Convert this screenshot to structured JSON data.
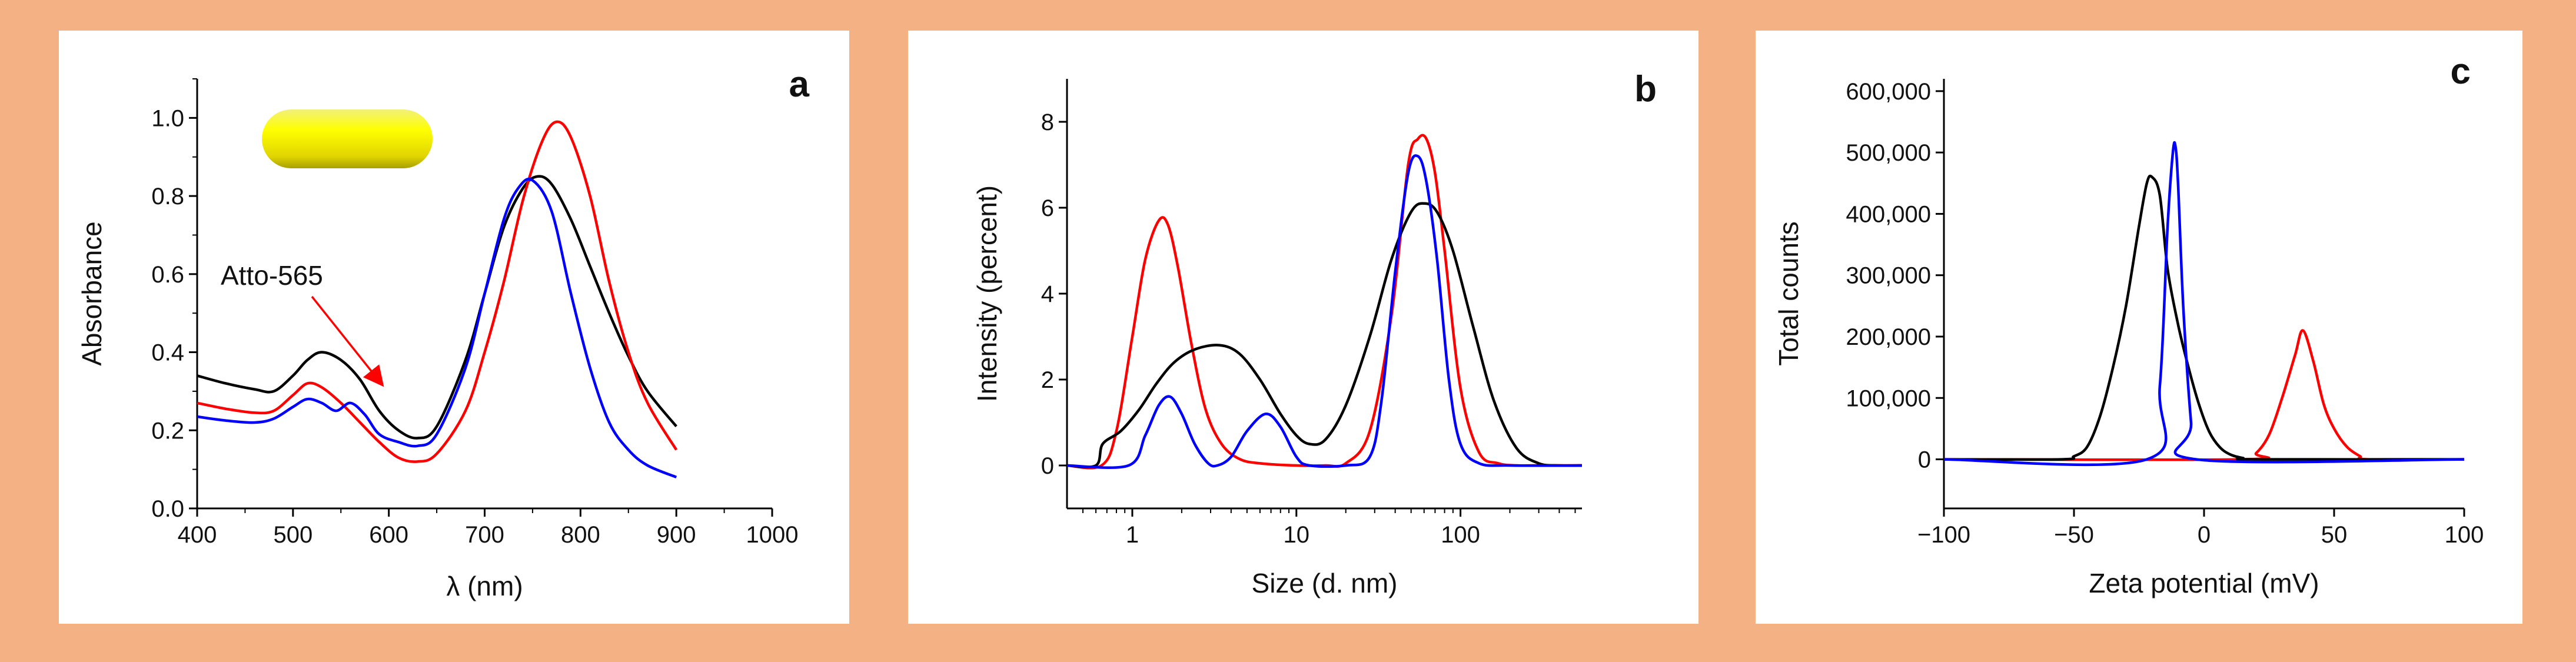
{
  "chart_data": [
    {
      "panel": "a",
      "type": "line",
      "panel_label": "a",
      "xlabel": "λ (nm)",
      "ylabel": "Absorbance",
      "xlim": [
        400,
        1000
      ],
      "ylim": [
        0,
        1.1
      ],
      "xticks": [
        "400",
        "500",
        "600",
        "700",
        "800",
        "900",
        "1000"
      ],
      "yticks": [
        "0.0",
        "0.2",
        "0.4",
        "0.6",
        "0.8",
        "1.0"
      ],
      "annotation": "Atto-565",
      "series": [
        {
          "name": "black",
          "color": "#000000",
          "x": [
            400,
            430,
            460,
            480,
            500,
            515,
            530,
            550,
            570,
            590,
            610,
            630,
            650,
            680,
            700,
            720,
            740,
            755,
            770,
            790,
            810,
            830,
            850,
            870,
            900
          ],
          "y": [
            0.34,
            0.32,
            0.305,
            0.3,
            0.34,
            0.38,
            0.4,
            0.38,
            0.33,
            0.25,
            0.2,
            0.18,
            0.21,
            0.38,
            0.55,
            0.72,
            0.82,
            0.85,
            0.83,
            0.74,
            0.62,
            0.5,
            0.39,
            0.3,
            0.21
          ]
        },
        {
          "name": "red",
          "color": "#FF0000",
          "x": [
            400,
            430,
            460,
            480,
            500,
            515,
            530,
            550,
            570,
            590,
            610,
            630,
            650,
            680,
            700,
            720,
            740,
            760,
            775,
            790,
            810,
            830,
            850,
            870,
            900
          ],
          "y": [
            0.27,
            0.255,
            0.245,
            0.25,
            0.29,
            0.32,
            0.31,
            0.27,
            0.22,
            0.17,
            0.13,
            0.12,
            0.14,
            0.25,
            0.4,
            0.58,
            0.79,
            0.94,
            0.99,
            0.95,
            0.8,
            0.58,
            0.4,
            0.27,
            0.15
          ]
        },
        {
          "name": "blue",
          "color": "#0000FF",
          "x": [
            400,
            430,
            460,
            480,
            500,
            515,
            530,
            545,
            560,
            575,
            590,
            610,
            630,
            650,
            680,
            700,
            720,
            735,
            750,
            770,
            790,
            810,
            830,
            850,
            870,
            900
          ],
          "y": [
            0.235,
            0.225,
            0.22,
            0.23,
            0.26,
            0.28,
            0.27,
            0.25,
            0.27,
            0.24,
            0.19,
            0.17,
            0.16,
            0.19,
            0.36,
            0.55,
            0.74,
            0.82,
            0.84,
            0.76,
            0.55,
            0.36,
            0.22,
            0.15,
            0.11,
            0.08
          ]
        }
      ]
    },
    {
      "panel": "b",
      "type": "line",
      "panel_label": "b",
      "xlabel": "Size (d. nm)",
      "ylabel": "Intensity (percent)",
      "xscale": "log",
      "xlim": [
        0.4,
        550
      ],
      "ylim": [
        -1,
        9
      ],
      "xticks": [
        "1",
        "10",
        "100"
      ],
      "yticks": [
        "0",
        "2",
        "4",
        "6",
        "8"
      ],
      "series": [
        {
          "name": "red",
          "color": "#FF0000",
          "x": [
            0.4,
            0.65,
            0.8,
            1.0,
            1.2,
            1.45,
            1.65,
            1.9,
            2.3,
            2.8,
            3.5,
            4.5,
            6,
            10,
            15,
            20,
            28,
            38,
            48,
            55,
            62,
            70,
            80,
            100,
            130,
            170,
            220,
            300,
            550
          ],
          "y": [
            0,
            0,
            0.8,
            3.0,
            4.8,
            5.7,
            5.6,
            4.6,
            2.8,
            1.3,
            0.5,
            0.15,
            0.05,
            0,
            0,
            0.05,
            0.8,
            3.5,
            7.0,
            7.6,
            7.6,
            6.8,
            5.0,
            1.8,
            0.3,
            0.05,
            0,
            0,
            0
          ]
        },
        {
          "name": "black",
          "color": "#000000",
          "x": [
            0.4,
            0.6,
            0.66,
            0.85,
            1.1,
            1.4,
            1.8,
            2.4,
            3.4,
            4.5,
            6,
            8,
            10,
            12,
            15,
            20,
            28,
            38,
            50,
            60,
            72,
            90,
            120,
            160,
            220,
            300,
            400,
            550
          ],
          "y": [
            0,
            0,
            0.5,
            0.8,
            1.3,
            1.9,
            2.4,
            2.7,
            2.8,
            2.6,
            2.0,
            1.2,
            0.7,
            0.5,
            0.6,
            1.4,
            3.0,
            4.8,
            5.9,
            6.1,
            5.9,
            5.0,
            3.2,
            1.5,
            0.4,
            0.05,
            0,
            0
          ]
        },
        {
          "name": "blue",
          "color": "#0000FF",
          "x": [
            0.4,
            0.95,
            1.2,
            1.45,
            1.7,
            2.0,
            2.4,
            2.9,
            3.3,
            4.0,
            5.0,
            6.5,
            8,
            10,
            12,
            20,
            28,
            33,
            40,
            48,
            55,
            62,
            72,
            85,
            100,
            130,
            200,
            550
          ],
          "y": [
            0,
            0,
            0.7,
            1.4,
            1.6,
            1.2,
            0.5,
            0.05,
            0,
            0.2,
            0.8,
            1.2,
            0.9,
            0.2,
            0,
            0,
            0.2,
            1.5,
            4.5,
            6.8,
            7.2,
            6.6,
            4.8,
            2.0,
            0.5,
            0.05,
            0,
            0
          ]
        }
      ]
    },
    {
      "panel": "c",
      "type": "line",
      "panel_label": "c",
      "xlabel": "Zeta potential (mV)",
      "ylabel": "Total counts",
      "xlim": [
        -100,
        100
      ],
      "ylim": [
        -80000,
        620000
      ],
      "xticks": [
        "−100",
        "−50",
        "0",
        "50",
        "100"
      ],
      "yticks": [
        "0",
        "100,000",
        "200,000",
        "300,000",
        "400,000",
        "500,000",
        "600,000"
      ],
      "series": [
        {
          "name": "red",
          "color": "#FF0000",
          "x": [
            -100,
            15,
            20,
            25,
            30,
            35,
            38,
            42,
            46,
            50,
            55,
            60,
            63,
            100
          ],
          "y": [
            0,
            0,
            10000,
            40000,
            100000,
            170000,
            210000,
            160000,
            90000,
            50000,
            20000,
            5000,
            0,
            0
          ]
        },
        {
          "name": "black",
          "color": "#000000",
          "x": [
            -100,
            -55,
            -50,
            -45,
            -40,
            -35,
            -30,
            -25,
            -22,
            -20,
            -17,
            -14,
            -10,
            -6,
            -2,
            2,
            6,
            10,
            15,
            20,
            100
          ],
          "y": [
            0,
            0,
            5000,
            20000,
            70000,
            150000,
            250000,
            380000,
            450000,
            460000,
            430000,
            310000,
            220000,
            150000,
            90000,
            45000,
            20000,
            8000,
            2000,
            0,
            0
          ]
        },
        {
          "name": "blue",
          "color": "#0000FF",
          "x": [
            -100,
            -22,
            -17,
            -14,
            -12,
            -11,
            -10,
            -8,
            -5,
            -3,
            100
          ],
          "y": [
            0,
            0,
            120000,
            380000,
            500000,
            510000,
            450000,
            250000,
            60000,
            0,
            0
          ]
        }
      ]
    }
  ]
}
